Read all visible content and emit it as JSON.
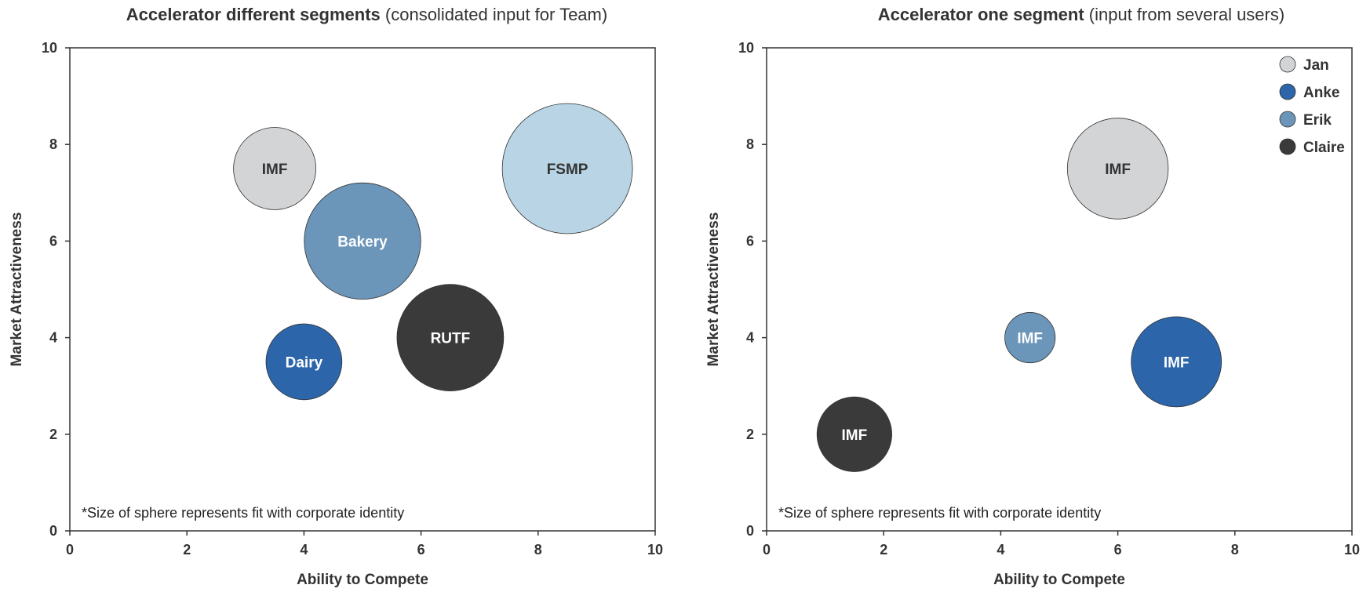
{
  "chart_data": [
    {
      "type": "bubble",
      "title_bold": "Accelerator different segments",
      "title_rest": " (consolidated input for Team)",
      "xlabel": "Ability to Compete",
      "ylabel": "Market Attractiveness",
      "xlim": [
        0,
        10
      ],
      "ylim": [
        0,
        10
      ],
      "xticks": [
        "0",
        "2",
        "4",
        "6",
        "8",
        "10"
      ],
      "yticks": [
        "0",
        "2",
        "4",
        "6",
        "8",
        "10"
      ],
      "note": "*Size of sphere represents fit with corporate identity",
      "points": [
        {
          "label": "IMF",
          "x": 3.5,
          "y": 7.5,
          "size": 40,
          "color": "#d3d4d6",
          "text_color": "#333333"
        },
        {
          "label": "Bakery",
          "x": 5.0,
          "y": 6.0,
          "size": 80,
          "color": "#6b95b9",
          "text_color": "#ffffff"
        },
        {
          "label": "FSMP",
          "x": 8.5,
          "y": 7.5,
          "size": 100,
          "color": "#b8d4e5",
          "text_color": "#333333"
        },
        {
          "label": "RUTF",
          "x": 6.5,
          "y": 4.0,
          "size": 67,
          "color": "#3a3a3a",
          "text_color": "#ffffff"
        },
        {
          "label": "Dairy",
          "x": 4.0,
          "y": 3.5,
          "size": 34,
          "color": "#2c65aa",
          "text_color": "#ffffff"
        }
      ]
    },
    {
      "type": "bubble",
      "title_bold": "Accelerator one segment",
      "title_rest": " (input from several users)",
      "xlabel": "Ability to Compete",
      "ylabel": "Market Attractiveness",
      "xlim": [
        0,
        10
      ],
      "ylim": [
        0,
        10
      ],
      "xticks": [
        "0",
        "2",
        "4",
        "6",
        "8",
        "10"
      ],
      "yticks": [
        "0",
        "2",
        "4",
        "6",
        "8",
        "10"
      ],
      "note": "*Size of sphere represents fit with corporate identity",
      "legend": [
        {
          "name": "Jan",
          "color": "#d3d4d6"
        },
        {
          "name": "Anke",
          "color": "#2c65aa"
        },
        {
          "name": "Erik",
          "color": "#6b95b9"
        },
        {
          "name": "Claire",
          "color": "#3a3a3a"
        }
      ],
      "legend_position": "top-right",
      "points": [
        {
          "label": "IMF",
          "x": 6.0,
          "y": 7.5,
          "size": 60,
          "color": "#d3d4d6",
          "text_color": "#333333",
          "series": "Jan"
        },
        {
          "label": "IMF",
          "x": 4.5,
          "y": 4.0,
          "size": 15,
          "color": "#6b95b9",
          "text_color": "#ffffff",
          "series": "Erik"
        },
        {
          "label": "IMF",
          "x": 7.0,
          "y": 3.5,
          "size": 48,
          "color": "#2c65aa",
          "text_color": "#ffffff",
          "series": "Anke"
        },
        {
          "label": "IMF",
          "x": 1.5,
          "y": 2.0,
          "size": 33,
          "color": "#3a3a3a",
          "text_color": "#ffffff",
          "series": "Claire"
        }
      ]
    }
  ]
}
